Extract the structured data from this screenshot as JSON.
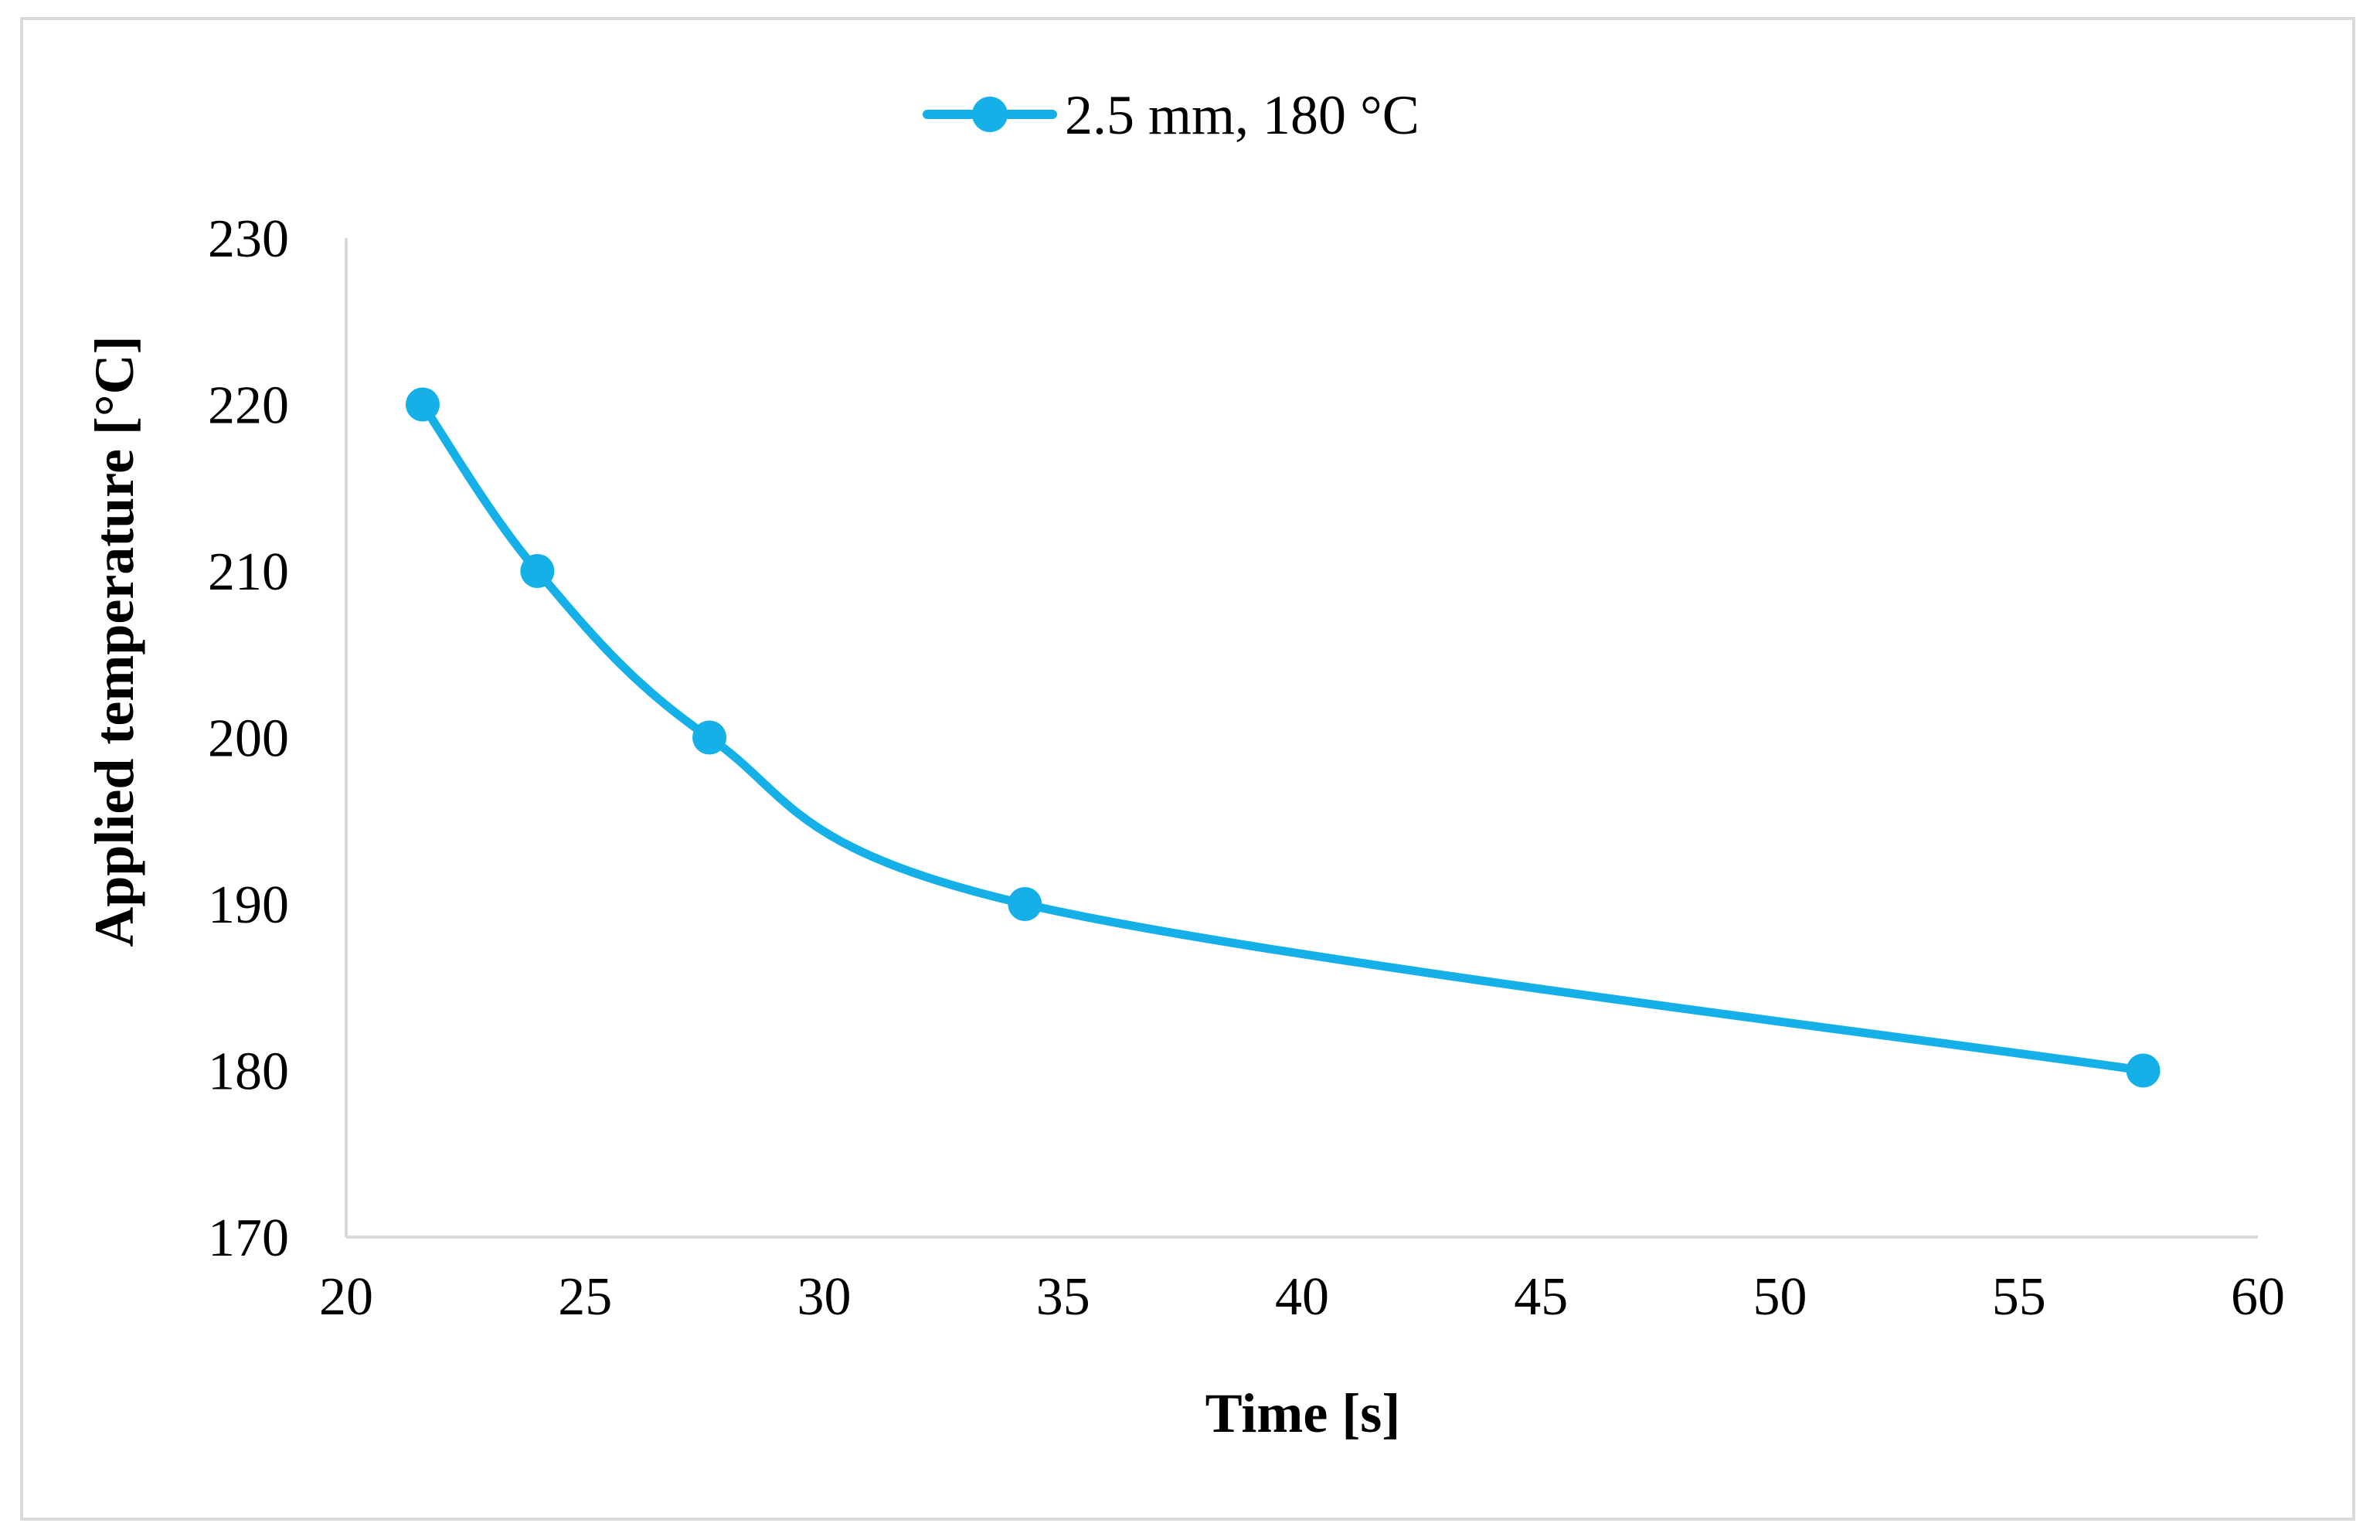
{
  "chart_data": {
    "type": "line",
    "title": "",
    "xlabel": "Time [s]",
    "ylabel": "Applied temperature [°C]",
    "xlim": [
      20,
      60
    ],
    "ylim": [
      170,
      230
    ],
    "x_ticks": [
      20,
      25,
      30,
      35,
      40,
      45,
      50,
      55,
      60
    ],
    "y_ticks": [
      170,
      180,
      190,
      200,
      210,
      220,
      230
    ],
    "grid": false,
    "smooth": true,
    "legend_position": "top-center",
    "series": [
      {
        "name": "2.5 mm, 180 °C",
        "color": "#15b0e8",
        "marker": "circle",
        "x": [
          21.6,
          24.0,
          27.6,
          34.2,
          57.6
        ],
        "y": [
          220,
          210,
          200,
          190,
          180
        ]
      }
    ]
  }
}
